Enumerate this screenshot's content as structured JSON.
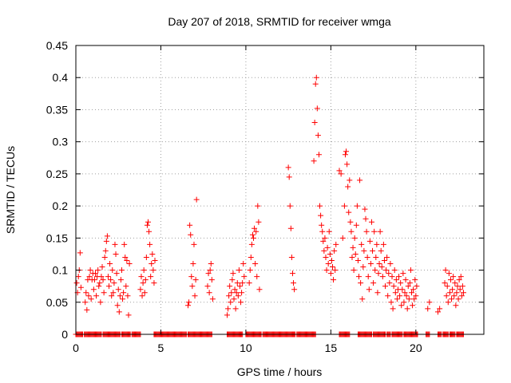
{
  "chart_data": {
    "type": "scatter",
    "title": "Day 207 of 2018, SRMTID for receiver wmga",
    "xlabel": "GPS time / hours",
    "ylabel": "SRMTID / TECUs",
    "xlim": [
      0,
      24
    ],
    "ylim": [
      0,
      0.45
    ],
    "x_ticks": [
      0,
      5,
      10,
      15,
      20
    ],
    "y_ticks": [
      0,
      0.05,
      0.1,
      0.15,
      0.2,
      0.25,
      0.3,
      0.35,
      0.4,
      0.45
    ],
    "x_tick_labels": [
      "0",
      "5",
      "10",
      "15",
      "20"
    ],
    "y_tick_labels": [
      "0",
      "0.05",
      "0.1",
      "0.15",
      "0.2",
      "0.25",
      "0.3",
      "0.35",
      "0.4",
      "0.45"
    ],
    "grid": true,
    "marker": "+",
    "series": [
      {
        "name": "SRMTID",
        "color": "#ff0000",
        "points": [
          [
            0.05,
            0.08
          ],
          [
            0.1,
            0.065
          ],
          [
            0.15,
            0.09
          ],
          [
            0.2,
            0.1
          ],
          [
            0.25,
            0.127
          ],
          [
            0.3,
            0.073
          ],
          [
            0.55,
            0.05
          ],
          [
            0.6,
            0.065
          ],
          [
            0.65,
            0.038
          ],
          [
            0.7,
            0.085
          ],
          [
            0.75,
            0.06
          ],
          [
            0.8,
            0.09
          ],
          [
            0.85,
            0.1
          ],
          [
            0.9,
            0.055
          ],
          [
            0.95,
            0.085
          ],
          [
            1.0,
            0.095
          ],
          [
            1.05,
            0.07
          ],
          [
            1.1,
            0.085
          ],
          [
            1.15,
            0.095
          ],
          [
            1.2,
            0.06
          ],
          [
            1.25,
            0.09
          ],
          [
            1.3,
            0.1
          ],
          [
            1.35,
            0.075
          ],
          [
            1.4,
            0.08
          ],
          [
            1.45,
            0.05
          ],
          [
            1.5,
            0.09
          ],
          [
            1.55,
            0.105
          ],
          [
            1.6,
            0.085
          ],
          [
            1.65,
            0.065
          ],
          [
            1.7,
            0.12
          ],
          [
            1.75,
            0.13
          ],
          [
            1.8,
            0.145
          ],
          [
            1.85,
            0.153
          ],
          [
            1.9,
            0.09
          ],
          [
            1.95,
            0.075
          ],
          [
            2.0,
            0.11
          ],
          [
            2.05,
            0.085
          ],
          [
            2.1,
            0.06
          ],
          [
            2.15,
            0.1
          ],
          [
            2.2,
            0.065
          ],
          [
            2.25,
            0.08
          ],
          [
            2.3,
            0.14
          ],
          [
            2.35,
            0.125
          ],
          [
            2.4,
            0.095
          ],
          [
            2.45,
            0.045
          ],
          [
            2.5,
            0.07
          ],
          [
            2.55,
            0.035
          ],
          [
            2.6,
            0.06
          ],
          [
            2.65,
            0.085
          ],
          [
            2.7,
            0.1
          ],
          [
            2.75,
            0.055
          ],
          [
            2.8,
            0.065
          ],
          [
            2.85,
            0.14
          ],
          [
            2.9,
            0.12
          ],
          [
            2.95,
            0.075
          ],
          [
            3.0,
            0.115
          ],
          [
            3.05,
            0.06
          ],
          [
            3.1,
            0.03
          ],
          [
            3.15,
            0.11
          ],
          [
            3.8,
            0.07
          ],
          [
            3.85,
            0.09
          ],
          [
            3.9,
            0.06
          ],
          [
            3.95,
            0.08
          ],
          [
            4.0,
            0.1
          ],
          [
            4.05,
            0.065
          ],
          [
            4.1,
            0.085
          ],
          [
            4.15,
            0.12
          ],
          [
            4.2,
            0.17
          ],
          [
            4.25,
            0.175
          ],
          [
            4.3,
            0.16
          ],
          [
            4.35,
            0.14
          ],
          [
            4.4,
            0.09
          ],
          [
            4.45,
            0.11
          ],
          [
            4.5,
            0.125
          ],
          [
            4.55,
            0.1
          ],
          [
            4.6,
            0.08
          ],
          [
            4.65,
            0.115
          ],
          [
            6.6,
            0.045
          ],
          [
            6.65,
            0.05
          ],
          [
            6.7,
            0.17
          ],
          [
            6.75,
            0.155
          ],
          [
            6.8,
            0.09
          ],
          [
            6.85,
            0.075
          ],
          [
            6.9,
            0.11
          ],
          [
            6.95,
            0.14
          ],
          [
            7.0,
            0.06
          ],
          [
            7.05,
            0.085
          ],
          [
            7.1,
            0.21
          ],
          [
            7.75,
            0.075
          ],
          [
            7.8,
            0.095
          ],
          [
            7.85,
            0.065
          ],
          [
            7.9,
            0.1
          ],
          [
            7.95,
            0.11
          ],
          [
            8.0,
            0.085
          ],
          [
            8.05,
            0.055
          ],
          [
            8.9,
            0.03
          ],
          [
            8.95,
            0.04
          ],
          [
            9.0,
            0.06
          ],
          [
            9.05,
            0.075
          ],
          [
            9.1,
            0.05
          ],
          [
            9.15,
            0.065
          ],
          [
            9.2,
            0.085
          ],
          [
            9.25,
            0.095
          ],
          [
            9.3,
            0.055
          ],
          [
            9.35,
            0.07
          ],
          [
            9.4,
            0.04
          ],
          [
            9.45,
            0.065
          ],
          [
            9.5,
            0.08
          ],
          [
            9.55,
            0.06
          ],
          [
            9.6,
            0.1
          ],
          [
            9.65,
            0.075
          ],
          [
            9.7,
            0.05
          ],
          [
            9.75,
            0.065
          ],
          [
            9.8,
            0.08
          ],
          [
            9.85,
            0.11
          ],
          [
            9.9,
            0.09
          ],
          [
            10.2,
            0.08
          ],
          [
            10.25,
            0.1
          ],
          [
            10.3,
            0.12
          ],
          [
            10.35,
            0.14
          ],
          [
            10.4,
            0.155
          ],
          [
            10.45,
            0.15
          ],
          [
            10.5,
            0.165
          ],
          [
            10.55,
            0.11
          ],
          [
            10.6,
            0.16
          ],
          [
            10.65,
            0.09
          ],
          [
            10.7,
            0.2
          ],
          [
            10.75,
            0.175
          ],
          [
            10.8,
            0.07
          ],
          [
            12.5,
            0.26
          ],
          [
            12.55,
            0.245
          ],
          [
            12.6,
            0.2
          ],
          [
            12.65,
            0.165
          ],
          [
            12.7,
            0.12
          ],
          [
            12.75,
            0.095
          ],
          [
            12.8,
            0.08
          ],
          [
            12.85,
            0.07
          ],
          [
            14.0,
            0.27
          ],
          [
            14.05,
            0.33
          ],
          [
            14.1,
            0.39
          ],
          [
            14.15,
            0.4
          ],
          [
            14.2,
            0.352
          ],
          [
            14.25,
            0.31
          ],
          [
            14.3,
            0.28
          ],
          [
            14.35,
            0.2
          ],
          [
            14.4,
            0.185
          ],
          [
            14.45,
            0.17
          ],
          [
            14.5,
            0.16
          ],
          [
            14.55,
            0.145
          ],
          [
            14.6,
            0.13
          ],
          [
            14.65,
            0.15
          ],
          [
            14.7,
            0.12
          ],
          [
            14.75,
            0.1
          ],
          [
            14.8,
            0.135
          ],
          [
            14.85,
            0.11
          ],
          [
            14.9,
            0.16
          ],
          [
            14.95,
            0.125
          ],
          [
            15.0,
            0.095
          ],
          [
            15.05,
            0.115
          ],
          [
            15.1,
            0.105
          ],
          [
            15.15,
            0.085
          ],
          [
            15.2,
            0.13
          ],
          [
            15.25,
            0.1
          ],
          [
            15.3,
            0.14
          ],
          [
            15.5,
            0.255
          ],
          [
            15.6,
            0.25
          ],
          [
            15.7,
            0.15
          ],
          [
            15.8,
            0.2
          ],
          [
            15.85,
            0.28
          ],
          [
            15.9,
            0.285
          ],
          [
            15.95,
            0.265
          ],
          [
            16.0,
            0.23
          ],
          [
            16.05,
            0.19
          ],
          [
            16.1,
            0.24
          ],
          [
            16.15,
            0.175
          ],
          [
            16.2,
            0.16
          ],
          [
            16.25,
            0.12
          ],
          [
            16.3,
            0.135
          ],
          [
            16.35,
            0.1
          ],
          [
            16.4,
            0.15
          ],
          [
            16.45,
            0.125
          ],
          [
            16.5,
            0.17
          ],
          [
            16.55,
            0.2
          ],
          [
            16.6,
            0.115
          ],
          [
            16.65,
            0.09
          ],
          [
            16.7,
            0.24
          ],
          [
            16.75,
            0.08
          ],
          [
            16.8,
            0.14
          ],
          [
            16.85,
            0.055
          ],
          [
            16.9,
            0.105
          ],
          [
            16.95,
            0.13
          ],
          [
            17.0,
            0.195
          ],
          [
            17.05,
            0.18
          ],
          [
            17.1,
            0.16
          ],
          [
            17.15,
            0.12
          ],
          [
            17.2,
            0.09
          ],
          [
            17.25,
            0.07
          ],
          [
            17.3,
            0.145
          ],
          [
            17.35,
            0.11
          ],
          [
            17.4,
            0.175
          ],
          [
            17.45,
            0.13
          ],
          [
            17.5,
            0.08
          ],
          [
            17.55,
            0.16
          ],
          [
            17.6,
            0.1
          ],
          [
            17.65,
            0.12
          ],
          [
            17.7,
            0.14
          ],
          [
            17.75,
            0.065
          ],
          [
            17.8,
            0.095
          ],
          [
            17.85,
            0.11
          ],
          [
            17.9,
            0.16
          ],
          [
            17.95,
            0.13
          ],
          [
            18.0,
            0.105
          ],
          [
            18.05,
            0.09
          ],
          [
            18.1,
            0.14
          ],
          [
            18.15,
            0.115
          ],
          [
            18.2,
            0.075
          ],
          [
            18.25,
            0.1
          ],
          [
            18.3,
            0.12
          ],
          [
            18.35,
            0.06
          ],
          [
            18.4,
            0.095
          ],
          [
            18.45,
            0.08
          ],
          [
            18.5,
            0.11
          ],
          [
            18.55,
            0.05
          ],
          [
            18.6,
            0.09
          ],
          [
            18.65,
            0.04
          ],
          [
            18.7,
            0.075
          ],
          [
            18.75,
            0.1
          ],
          [
            18.8,
            0.065
          ],
          [
            18.85,
            0.085
          ],
          [
            18.9,
            0.055
          ],
          [
            18.95,
            0.07
          ],
          [
            19.0,
            0.09
          ],
          [
            19.05,
            0.06
          ],
          [
            19.1,
            0.08
          ],
          [
            19.15,
            0.045
          ],
          [
            19.2,
            0.07
          ],
          [
            19.25,
            0.095
          ],
          [
            19.3,
            0.05
          ],
          [
            19.35,
            0.065
          ],
          [
            19.4,
            0.085
          ],
          [
            19.45,
            0.06
          ],
          [
            19.5,
            0.04
          ],
          [
            19.55,
            0.075
          ],
          [
            19.6,
            0.055
          ],
          [
            19.65,
            0.08
          ],
          [
            19.7,
            0.1
          ],
          [
            19.75,
            0.065
          ],
          [
            19.8,
            0.045
          ],
          [
            19.85,
            0.07
          ],
          [
            19.9,
            0.055
          ],
          [
            19.95,
            0.085
          ],
          [
            20.0,
            0.06
          ],
          [
            20.05,
            0.075
          ],
          [
            20.7,
            0.04
          ],
          [
            20.8,
            0.05
          ],
          [
            21.3,
            0.035
          ],
          [
            21.4,
            0.04
          ],
          [
            21.7,
            0.08
          ],
          [
            21.75,
            0.1
          ],
          [
            21.8,
            0.06
          ],
          [
            21.85,
            0.075
          ],
          [
            21.9,
            0.05
          ],
          [
            21.95,
            0.095
          ],
          [
            22.0,
            0.065
          ],
          [
            22.05,
            0.085
          ],
          [
            22.1,
            0.055
          ],
          [
            22.15,
            0.07
          ],
          [
            22.2,
            0.09
          ],
          [
            22.25,
            0.06
          ],
          [
            22.3,
            0.08
          ],
          [
            22.35,
            0.045
          ],
          [
            22.4,
            0.065
          ],
          [
            22.45,
            0.075
          ],
          [
            22.5,
            0.055
          ],
          [
            22.55,
            0.085
          ],
          [
            22.6,
            0.07
          ],
          [
            22.65,
            0.09
          ],
          [
            22.7,
            0.06
          ],
          [
            22.75,
            0.075
          ],
          [
            22.8,
            0.065
          ]
        ],
        "zero_ranges": [
          [
            0.0,
            0.4
          ],
          [
            0.5,
            1.5
          ],
          [
            1.6,
            2.6
          ],
          [
            2.7,
            3.2
          ],
          [
            3.3,
            3.8
          ],
          [
            4.6,
            6.5
          ],
          [
            6.6,
            8.0
          ],
          [
            8.9,
            9.8
          ],
          [
            10.0,
            10.9
          ],
          [
            11.0,
            12.9
          ],
          [
            13.0,
            14.1
          ],
          [
            15.5,
            16.1
          ],
          [
            16.6,
            17.4
          ],
          [
            17.5,
            18.2
          ],
          [
            18.3,
            18.5
          ],
          [
            18.6,
            19.2
          ],
          [
            19.3,
            20.1
          ],
          [
            20.6,
            20.8
          ],
          [
            21.3,
            21.5
          ],
          [
            21.6,
            21.9
          ],
          [
            22.0,
            22.3
          ],
          [
            22.4,
            22.8
          ]
        ]
      }
    ]
  }
}
